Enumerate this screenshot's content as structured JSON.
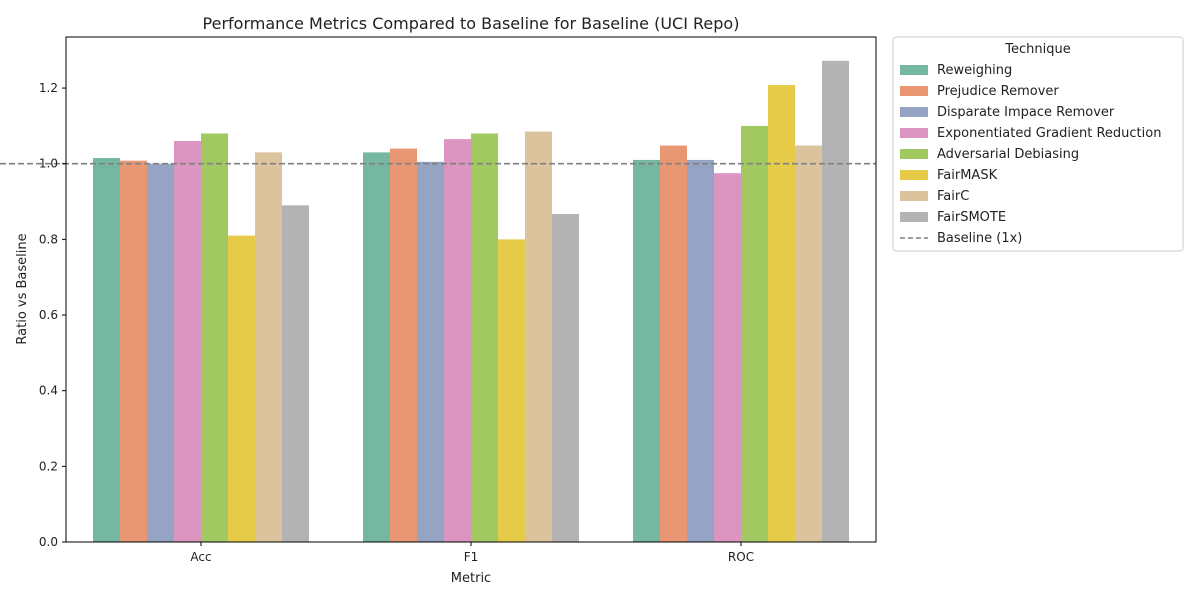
{
  "chart_data": {
    "type": "bar",
    "title": "Performance Metrics Compared to Baseline for Baseline (UCI Repo)",
    "xlabel": "Metric",
    "ylabel": "Ratio vs Baseline",
    "categories": [
      "Acc",
      "F1",
      "ROC"
    ],
    "ylim": [
      0,
      1.335
    ],
    "yticks": [
      "0.0",
      "0.2",
      "0.4",
      "0.6",
      "0.8",
      "1.0",
      "1.2"
    ],
    "grid": false,
    "legend_title": "Technique",
    "legend_position": "outside-top-right",
    "baseline": {
      "value": 1.0,
      "label": "Baseline (1x)",
      "color": "#808080",
      "style": "dashed"
    },
    "series": [
      {
        "name": "Reweighing",
        "color": "#76b7a1",
        "values": [
          1.015,
          1.03,
          1.01
        ]
      },
      {
        "name": "Prejudice Remover",
        "color": "#e99674",
        "values": [
          1.008,
          1.04,
          1.048
        ]
      },
      {
        "name": "Disparate Impace Remover",
        "color": "#95a4c5",
        "values": [
          1.0,
          1.005,
          1.01
        ]
      },
      {
        "name": "Exponentiated Gradient Reduction",
        "color": "#dc94c0",
        "values": [
          1.06,
          1.065,
          0.975
        ]
      },
      {
        "name": "Adversarial Debiasing",
        "color": "#a2c862",
        "values": [
          1.08,
          1.08,
          1.1
        ]
      },
      {
        "name": "FairMASK",
        "color": "#e5cb48",
        "values": [
          0.81,
          0.8,
          1.208
        ]
      },
      {
        "name": "FairC",
        "color": "#dbc39d",
        "values": [
          1.03,
          1.085,
          1.048
        ]
      },
      {
        "name": "FairSMOTE",
        "color": "#b3b3b3",
        "values": [
          0.89,
          0.867,
          1.272
        ]
      }
    ]
  }
}
